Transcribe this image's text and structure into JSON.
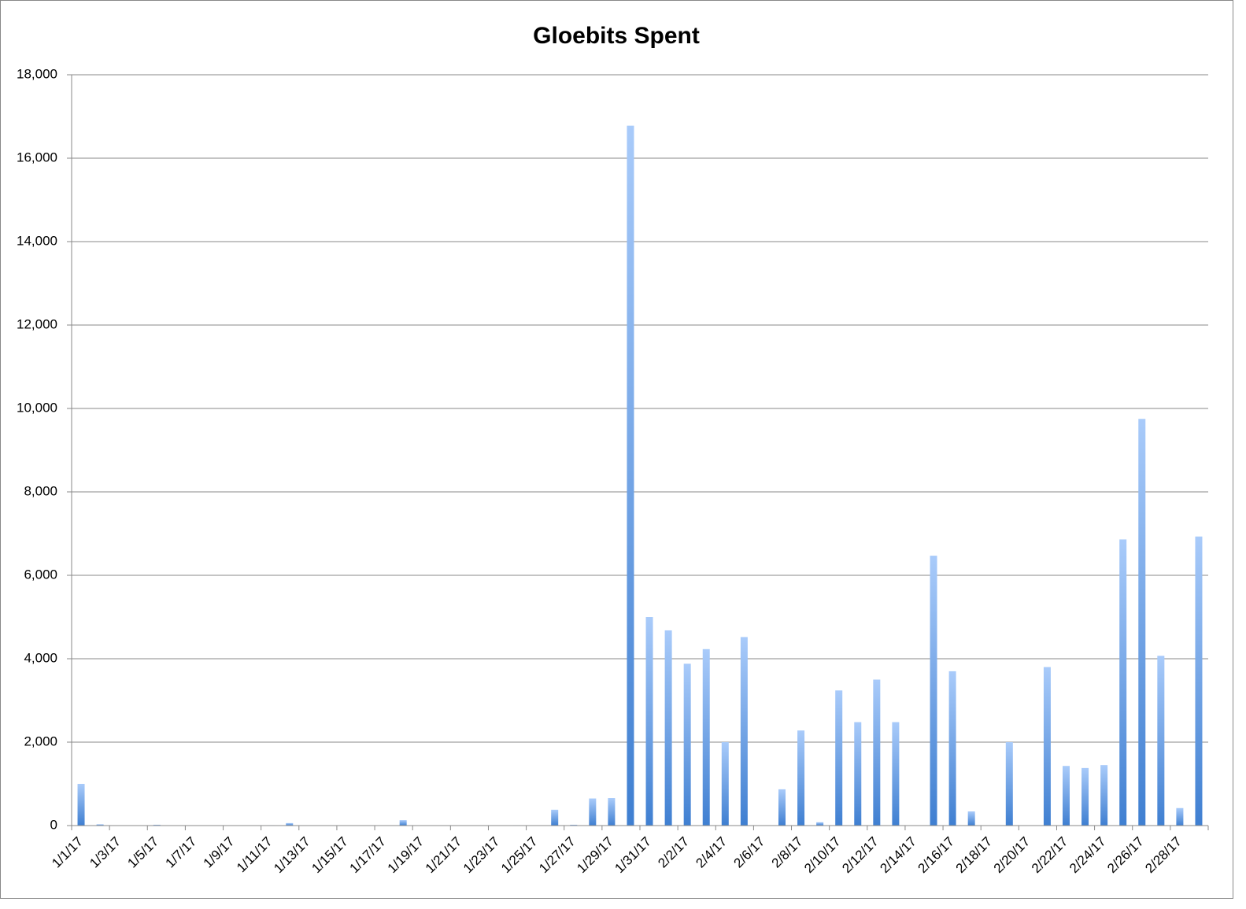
{
  "chart_data": {
    "type": "bar",
    "title": "Gloebits Spent",
    "categories": [
      "1/1/17",
      null,
      "1/3/17",
      null,
      "1/5/17",
      null,
      "1/7/17",
      null,
      "1/9/17",
      null,
      "1/11/17",
      null,
      "1/13/17",
      null,
      "1/15/17",
      null,
      "1/17/17",
      null,
      "1/19/17",
      null,
      "1/21/17",
      null,
      "1/23/17",
      null,
      "1/25/17",
      null,
      "1/27/17",
      null,
      "1/29/17",
      null,
      "1/31/17",
      null,
      "2/2/17",
      null,
      "2/4/17",
      null,
      "2/6/17",
      null,
      "2/8/17",
      null,
      "2/10/17",
      null,
      "2/12/17",
      null,
      "2/14/17",
      null,
      "2/16/17",
      null,
      "2/18/17",
      null,
      "2/20/17",
      null,
      "2/22/17",
      null,
      "2/24/17",
      null,
      "2/26/17",
      null,
      "2/28/17",
      null
    ],
    "values": [
      1000,
      30,
      0,
      0,
      20,
      0,
      0,
      0,
      0,
      0,
      10,
      60,
      0,
      0,
      0,
      0,
      0,
      130,
      0,
      0,
      0,
      0,
      0,
      10,
      0,
      380,
      20,
      650,
      660,
      16780,
      5000,
      4680,
      3880,
      4230,
      2000,
      4520,
      0,
      870,
      2280,
      80,
      3240,
      2480,
      3500,
      2480,
      0,
      6470,
      3700,
      340,
      0,
      2000,
      0,
      3800,
      1430,
      1380,
      1450,
      6860,
      9750,
      4070,
      420,
      6930
    ],
    "color": "#5b9bea",
    "ylim": [
      0,
      18000
    ],
    "yticks": [
      0,
      {
        "value": 2000,
        "label": "2,000"
      },
      {
        "value": 4000,
        "label": "4,000"
      },
      {
        "value": 6000,
        "label": "6,000"
      },
      {
        "value": 8000,
        "label": "8,000"
      },
      {
        "value": 10000,
        "label": "10,000"
      },
      {
        "value": 12000,
        "label": "12,000"
      },
      {
        "value": 14000,
        "label": "14,000"
      },
      {
        "value": 16000,
        "label": "16,000"
      },
      {
        "value": 18000,
        "label": "18,000"
      }
    ],
    "grid": true
  }
}
